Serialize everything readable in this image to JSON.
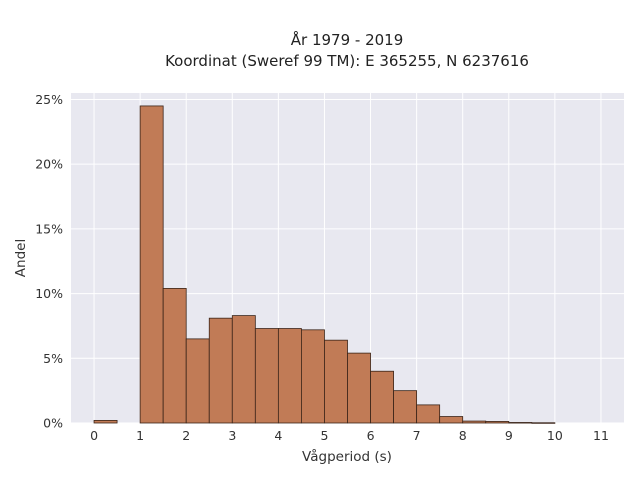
{
  "chart_data": {
    "type": "bar",
    "title_lines": [
      "År 1979 - 2019",
      "Koordinat (Sweref 99 TM): E 365255, N 6237616"
    ],
    "xlabel": "Vågperiod (s)",
    "ylabel": "Andel",
    "xlim": [
      -0.5,
      11.5
    ],
    "ylim": [
      0,
      0.255
    ],
    "xticks": [
      0,
      1,
      2,
      3,
      4,
      5,
      6,
      7,
      8,
      9,
      10,
      11
    ],
    "xtick_labels": [
      "0",
      "1",
      "2",
      "3",
      "4",
      "5",
      "6",
      "7",
      "8",
      "9",
      "10",
      "11"
    ],
    "yticks": [
      0,
      0.05,
      0.1,
      0.15,
      0.2,
      0.25
    ],
    "ytick_labels": [
      "0%",
      "5%",
      "10%",
      "15%",
      "20%",
      "25%"
    ],
    "bin_width": 0.5,
    "bins": [
      {
        "start": 0.0,
        "value": 0.002
      },
      {
        "start": 0.5,
        "value": 0.0
      },
      {
        "start": 1.0,
        "value": 0.245
      },
      {
        "start": 1.5,
        "value": 0.104
      },
      {
        "start": 2.0,
        "value": 0.065
      },
      {
        "start": 2.5,
        "value": 0.081
      },
      {
        "start": 3.0,
        "value": 0.083
      },
      {
        "start": 3.5,
        "value": 0.073
      },
      {
        "start": 4.0,
        "value": 0.073
      },
      {
        "start": 4.5,
        "value": 0.072
      },
      {
        "start": 5.0,
        "value": 0.064
      },
      {
        "start": 5.5,
        "value": 0.054
      },
      {
        "start": 6.0,
        "value": 0.04
      },
      {
        "start": 6.5,
        "value": 0.025
      },
      {
        "start": 7.0,
        "value": 0.014
      },
      {
        "start": 7.5,
        "value": 0.005
      },
      {
        "start": 8.0,
        "value": 0.0015
      },
      {
        "start": 8.5,
        "value": 0.0012
      },
      {
        "start": 9.0,
        "value": 0.0004
      },
      {
        "start": 9.5,
        "value": 0.0002
      },
      {
        "start": 10.0,
        "value": 0.0
      }
    ],
    "colors": {
      "bar_fill": "#c17b56",
      "bar_edge": "#3a2418",
      "plot_background": "#e8e8f0",
      "grid": "#ffffff"
    },
    "grid": true,
    "legend": "none"
  }
}
